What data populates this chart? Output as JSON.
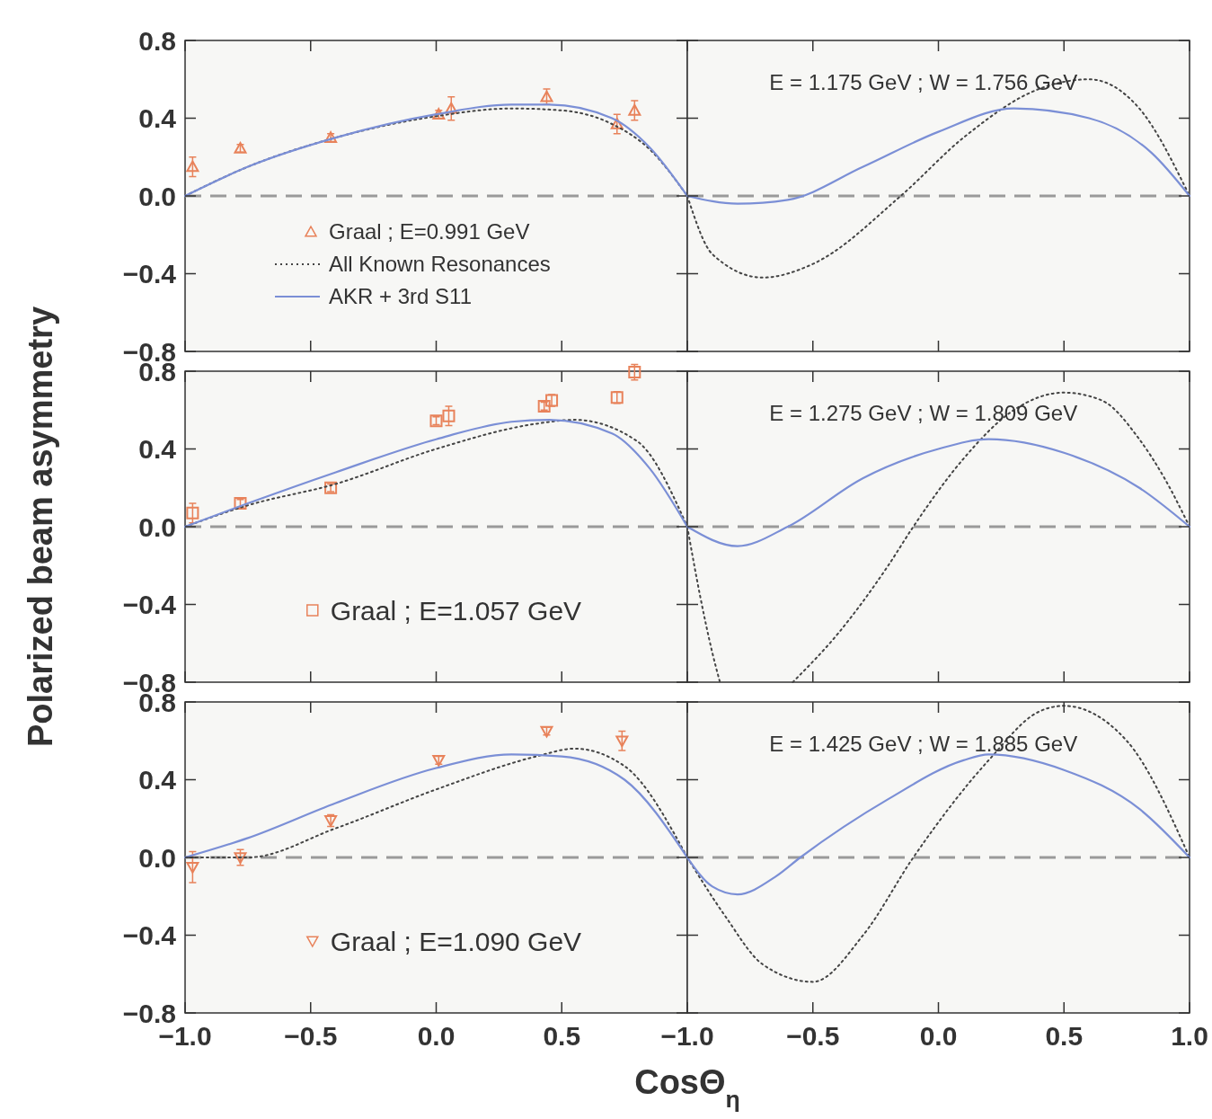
{
  "chart_data": [
    {
      "type": "scatter",
      "xlim": [
        -1,
        1
      ],
      "ylim": [
        -0.8,
        0.8
      ],
      "xticks": [
        {
          "value": -1,
          "label": null
        },
        {
          "value": -0.5,
          "label": null
        },
        {
          "value": 0,
          "label": null
        },
        {
          "value": 0.5,
          "label": null
        },
        {
          "value": 1,
          "label": null
        }
      ],
      "yticks": [
        {
          "value": -0.8,
          "label": "−0.8"
        },
        {
          "value": -0.4,
          "label": "−0.4"
        },
        {
          "value": 0,
          "label": "0.0"
        },
        {
          "value": 0.4,
          "label": "0.4"
        },
        {
          "value": 0.8,
          "label": "0.8"
        }
      ],
      "tick_labels": "y",
      "legend": "left",
      "ref_lines": [
        {
          "axis": "y",
          "value": 0,
          "color": "#9a9a9a",
          "line_style": "dashed"
        }
      ],
      "series": [
        {
          "name": "Graal ; E=0.991 GeV",
          "marker": "triangle",
          "color": "#e8825a",
          "x": [
            -0.97,
            -0.78,
            -0.42,
            0.01,
            0.06,
            0.44,
            0.72,
            0.79
          ],
          "values": [
            0.15,
            0.245,
            0.3,
            0.42,
            0.45,
            0.51,
            0.37,
            0.44
          ],
          "errors": [
            0.05,
            0.02,
            0.02,
            0.02,
            0.06,
            0.04,
            0.05,
            0.05
          ]
        },
        {
          "name": "All Known Resonances",
          "type": "line",
          "line_style": "dotted",
          "color": "#444444",
          "x": [
            -1,
            -0.75,
            -0.4,
            0,
            0.3,
            0.5,
            0.7,
            0.85,
            1
          ],
          "values": [
            0,
            0.15,
            0.3,
            0.41,
            0.45,
            0.44,
            0.37,
            0.24,
            0
          ]
        },
        {
          "name": "AKR + 3rd S11",
          "type": "line",
          "line_style": "solid",
          "color": "#7b8fd6",
          "x": [
            -1,
            -0.75,
            -0.4,
            0,
            0.3,
            0.45,
            0.7,
            0.85,
            1
          ],
          "values": [
            0,
            0.15,
            0.3,
            0.42,
            0.47,
            0.47,
            0.4,
            0.25,
            0
          ]
        }
      ]
    },
    {
      "type": "line",
      "xlim": [
        -1,
        1
      ],
      "ylim": [
        -0.8,
        0.8
      ],
      "xticks": [
        {
          "value": -1,
          "label": null
        },
        {
          "value": -0.5,
          "label": null
        },
        {
          "value": 0,
          "label": null
        },
        {
          "value": 0.5,
          "label": null
        },
        {
          "value": 1,
          "label": null
        }
      ],
      "yticks": [
        {
          "value": -0.8,
          "label": null
        },
        {
          "value": -0.4,
          "label": null
        },
        {
          "value": 0,
          "label": null
        },
        {
          "value": 0.4,
          "label": null
        },
        {
          "value": 0.8,
          "label": null
        }
      ],
      "tick_labels": false,
      "annotations": [
        "E = 1.175 GeV ; W = 1.756 GeV"
      ],
      "ref_lines": [
        {
          "axis": "y",
          "value": 0,
          "color": "#9a9a9a",
          "line_style": "dashed"
        }
      ],
      "series": [
        {
          "line_style": "dotted",
          "color": "#444444",
          "x": [
            -1,
            -0.9,
            -0.7,
            -0.5,
            -0.15,
            0.1,
            0.4,
            0.6,
            0.8,
            1
          ],
          "values": [
            0,
            -0.3,
            -0.42,
            -0.35,
            0,
            0.3,
            0.55,
            0.6,
            0.45,
            0
          ]
        },
        {
          "line_style": "solid",
          "color": "#7b8fd6",
          "x": [
            -1,
            -0.8,
            -0.6,
            -0.3,
            0,
            0.3,
            0.6,
            0.85,
            1
          ],
          "values": [
            0,
            -0.04,
            -0.02,
            0.15,
            0.33,
            0.45,
            0.4,
            0.22,
            0
          ]
        }
      ]
    },
    {
      "type": "scatter",
      "ylabel": "Polarized beam asymmetry",
      "xlim": [
        -1,
        1
      ],
      "ylim": [
        -0.8,
        0.8
      ],
      "xticks": [
        {
          "value": -1,
          "label": null
        },
        {
          "value": -0.5,
          "label": null
        },
        {
          "value": 0,
          "label": null
        },
        {
          "value": 0.5,
          "label": null
        },
        {
          "value": 1,
          "label": null
        }
      ],
      "yticks": [
        {
          "value": -0.8,
          "label": "−0.8"
        },
        {
          "value": -0.4,
          "label": "−0.4"
        },
        {
          "value": 0,
          "label": "0.0"
        },
        {
          "value": 0.4,
          "label": "0.4"
        },
        {
          "value": 0.8,
          "label": "0.8"
        }
      ],
      "tick_labels": "y",
      "legend": "bottom",
      "ref_lines": [
        {
          "axis": "y",
          "value": 0,
          "color": "#9a9a9a",
          "line_style": "dashed"
        }
      ],
      "series": [
        {
          "name": "Graal ; E=1.057 GeV",
          "marker": "square",
          "color": "#e8825a",
          "x": [
            -0.97,
            -0.78,
            -0.42,
            0.0,
            0.05,
            0.43,
            0.46,
            0.72,
            0.79
          ],
          "values": [
            0.07,
            0.12,
            0.2,
            0.545,
            0.57,
            0.62,
            0.65,
            0.665,
            0.795
          ],
          "errors": [
            0.05,
            0.02,
            0.02,
            0.02,
            0.05,
            0.02,
            0.03,
            0.03,
            0.04
          ]
        },
        {
          "type": "line",
          "line_style": "dotted",
          "color": "#444444",
          "x": [
            -1,
            -0.75,
            -0.4,
            0,
            0.4,
            0.55,
            0.8,
            1
          ],
          "values": [
            0,
            0.11,
            0.22,
            0.4,
            0.53,
            0.55,
            0.44,
            0
          ]
        },
        {
          "type": "line",
          "line_style": "solid",
          "color": "#7b8fd6",
          "x": [
            -1,
            -0.75,
            -0.4,
            0,
            0.3,
            0.45,
            0.7,
            0.85,
            1
          ],
          "values": [
            0,
            0.12,
            0.28,
            0.45,
            0.54,
            0.55,
            0.48,
            0.3,
            0
          ]
        }
      ]
    },
    {
      "type": "line",
      "xlim": [
        -1,
        1
      ],
      "ylim": [
        -0.8,
        0.8
      ],
      "xticks": [
        {
          "value": -1,
          "label": null
        },
        {
          "value": -0.5,
          "label": null
        },
        {
          "value": 0,
          "label": null
        },
        {
          "value": 0.5,
          "label": null
        },
        {
          "value": 1,
          "label": null
        }
      ],
      "yticks": [
        {
          "value": -0.8,
          "label": null
        },
        {
          "value": -0.4,
          "label": null
        },
        {
          "value": 0,
          "label": null
        },
        {
          "value": 0.4,
          "label": null
        },
        {
          "value": 0.8,
          "label": null
        }
      ],
      "tick_labels": false,
      "annotations": [
        "E = 1.275 GeV ; W = 1.809 GeV"
      ],
      "ref_lines": [
        {
          "axis": "y",
          "value": 0,
          "color": "#9a9a9a",
          "line_style": "dashed"
        }
      ],
      "series": [
        {
          "line_style": "dotted",
          "color": "#444444",
          "x": [
            -1,
            -0.95,
            -0.9,
            -0.87,
            -0.72,
            -0.58,
            -0.4,
            -0.2,
            -0.1,
            0.1,
            0.3,
            0.5,
            0.65,
            0.8,
            0.9,
            1
          ],
          "values": [
            0,
            -0.35,
            -0.65,
            -0.8,
            null,
            -0.8,
            -0.55,
            -0.2,
            0,
            0.35,
            0.6,
            0.69,
            0.65,
            0.45,
            0.25,
            0
          ]
        },
        {
          "line_style": "solid",
          "color": "#7b8fd6",
          "x": [
            -1,
            -0.8,
            -0.6,
            -0.3,
            0,
            0.2,
            0.5,
            0.8,
            1
          ],
          "values": [
            0,
            -0.1,
            0,
            0.25,
            0.4,
            0.45,
            0.38,
            0.2,
            0
          ]
        }
      ]
    },
    {
      "type": "scatter",
      "xlabel": "CosΘ$_{η}$",
      "xlim": [
        -1,
        1
      ],
      "ylim": [
        -0.8,
        0.8
      ],
      "xticks": [
        {
          "value": -1,
          "label": "−1.0"
        },
        {
          "value": -0.5,
          "label": "−0.5"
        },
        {
          "value": 0,
          "label": "0.0"
        },
        {
          "value": 0.5,
          "label": "0.5"
        },
        {
          "value": 1,
          "label": null
        }
      ],
      "yticks": [
        {
          "value": -0.8,
          "label": "−0.8"
        },
        {
          "value": -0.4,
          "label": "−0.4"
        },
        {
          "value": 0,
          "label": "0.0"
        },
        {
          "value": 0.4,
          "label": "0.4"
        },
        {
          "value": 0.8,
          "label": "0.8"
        }
      ],
      "legend": "bottom",
      "ref_lines": [
        {
          "axis": "y",
          "value": 0,
          "color": "#9a9a9a",
          "line_style": "dashed"
        }
      ],
      "series": [
        {
          "name": "Graal ; E=1.090 GeV",
          "marker": "triangle-down",
          "color": "#e8825a",
          "x": [
            -0.97,
            -0.78,
            -0.42,
            0.01,
            0.44,
            0.74
          ],
          "values": [
            -0.05,
            0.0,
            0.19,
            0.5,
            0.65,
            0.6
          ],
          "errors": [
            0.08,
            0.04,
            0.03,
            0.02,
            0.02,
            0.05
          ]
        },
        {
          "type": "line",
          "line_style": "dotted",
          "color": "#444444",
          "x": [
            -1,
            -0.75,
            -0.4,
            0,
            0.4,
            0.55,
            0.75,
            1
          ],
          "values": [
            0,
            0,
            0.15,
            0.35,
            0.52,
            0.56,
            0.47,
            0
          ]
        },
        {
          "type": "line",
          "line_style": "solid",
          "color": "#7b8fd6",
          "x": [
            -1,
            -0.75,
            -0.4,
            0,
            0.3,
            0.5,
            0.75,
            1
          ],
          "values": [
            0,
            0.1,
            0.28,
            0.46,
            0.53,
            0.52,
            0.4,
            0
          ]
        }
      ]
    },
    {
      "type": "line",
      "xlim": [
        -1,
        1
      ],
      "ylim": [
        -0.8,
        0.8
      ],
      "xticks": [
        {
          "value": -1,
          "label": "−1.0"
        },
        {
          "value": -0.5,
          "label": "−0.5"
        },
        {
          "value": 0,
          "label": "0.0"
        },
        {
          "value": 0.5,
          "label": "0.5"
        },
        {
          "value": 1,
          "label": "1.0"
        }
      ],
      "yticks": [
        {
          "value": -0.8,
          "label": null
        },
        {
          "value": -0.4,
          "label": null
        },
        {
          "value": 0,
          "label": null
        },
        {
          "value": 0.4,
          "label": null
        },
        {
          "value": 0.8,
          "label": null
        }
      ],
      "tick_labels": "x",
      "annotations": [
        "E = 1.425 GeV ; W = 1.885 GeV"
      ],
      "ref_lines": [
        {
          "axis": "y",
          "value": 0,
          "color": "#9a9a9a",
          "line_style": "dashed"
        }
      ],
      "series": [
        {
          "line_style": "dotted",
          "color": "#444444",
          "x": [
            -1,
            -0.85,
            -0.7,
            -0.5,
            -0.3,
            -0.1,
            0.2,
            0.4,
            0.5,
            0.75,
            1
          ],
          "values": [
            0,
            -0.3,
            -0.55,
            -0.64,
            -0.4,
            0,
            0.5,
            0.75,
            0.78,
            0.6,
            0
          ]
        },
        {
          "line_style": "solid",
          "color": "#7b8fd6",
          "x": [
            -1,
            -0.9,
            -0.8,
            -0.65,
            -0.55,
            -0.2,
            0.1,
            0.2,
            0.5,
            0.8,
            1
          ],
          "values": [
            0,
            -0.15,
            -0.19,
            -0.1,
            0,
            0.3,
            0.5,
            0.53,
            0.45,
            0.25,
            0
          ]
        }
      ]
    }
  ]
}
